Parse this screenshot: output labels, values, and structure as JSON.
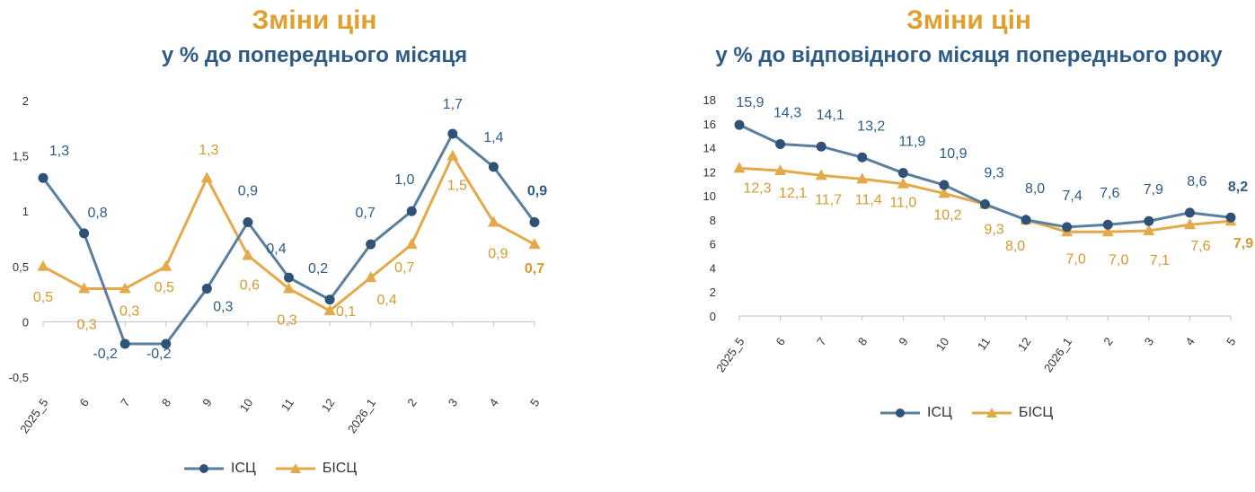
{
  "colors": {
    "title": "#E0A030",
    "subtitle": "#2E5B86",
    "isc": "#5A7E9E",
    "isc_marker": "#2F5276",
    "bisc": "#E3A94A",
    "isc_label": "#2E5B86",
    "bisc_label": "#D49A2E"
  },
  "chart_data": [
    {
      "type": "line",
      "title": "Зміни цін",
      "subtitle": "у % до попереднього місяця",
      "categories": [
        "2025_5",
        "6",
        "7",
        "8",
        "9",
        "10",
        "11",
        "12",
        "2026_1",
        "2",
        "3",
        "4",
        "5"
      ],
      "ylim": [
        -0.5,
        2
      ],
      "yticks": [
        "-0,5",
        "0",
        "0,5",
        "1",
        "1,5",
        "2"
      ],
      "ytick_values": [
        -0.5,
        0,
        0.5,
        1,
        1.5,
        2
      ],
      "grid": false,
      "legend_position": "bottom",
      "series": [
        {
          "name": "ІСЦ",
          "marker": "circle",
          "values": [
            1.3,
            0.8,
            -0.2,
            -0.2,
            0.3,
            0.9,
            0.4,
            0.2,
            0.7,
            1.0,
            1.7,
            1.4,
            0.9
          ],
          "labels": [
            "1,3",
            "0,8",
            "-0,2",
            "-0,2",
            "0,3",
            "0,9",
            "0,4",
            "0,2",
            "0,7",
            "1,0",
            "1,7",
            "1,4",
            "0,9"
          ]
        },
        {
          "name": "БІСЦ",
          "marker": "triangle",
          "values": [
            0.5,
            0.3,
            0.3,
            0.5,
            1.3,
            0.6,
            0.3,
            0.1,
            0.4,
            0.7,
            1.5,
            0.9,
            0.7
          ],
          "labels": [
            "0,5",
            "0,3",
            "0,3",
            "0,5",
            "1,3",
            "0,6",
            "0,3",
            "0,1",
            "0,4",
            "0,7",
            "1,5",
            "0,9",
            "0,7"
          ]
        }
      ]
    },
    {
      "type": "line",
      "title": "Зміни цін",
      "subtitle": "у % до відповідного місяця попереднього року",
      "categories": [
        "2025_5",
        "6",
        "7",
        "8",
        "9",
        "10",
        "11",
        "12",
        "2026_1",
        "2",
        "3",
        "4",
        "5"
      ],
      "ylim": [
        0,
        18
      ],
      "yticks": [
        "0",
        "2",
        "4",
        "6",
        "8",
        "10",
        "12",
        "14",
        "16",
        "18"
      ],
      "ytick_values": [
        0,
        2,
        4,
        6,
        8,
        10,
        12,
        14,
        16,
        18
      ],
      "grid": false,
      "legend_position": "bottom",
      "series": [
        {
          "name": "ІСЦ",
          "marker": "circle",
          "values": [
            15.9,
            14.3,
            14.1,
            13.2,
            11.9,
            10.9,
            9.3,
            8.0,
            7.4,
            7.6,
            7.9,
            8.6,
            8.2
          ],
          "labels": [
            "15,9",
            "14,3",
            "14,1",
            "13,2",
            "11,9",
            "10,9",
            "9,3",
            "8,0",
            "7,4",
            "7,6",
            "7,9",
            "8,6",
            "8,2"
          ]
        },
        {
          "name": "БІСЦ",
          "marker": "triangle",
          "values": [
            12.3,
            12.1,
            11.7,
            11.4,
            11.0,
            10.2,
            9.3,
            8.0,
            7.0,
            7.0,
            7.1,
            7.6,
            7.9
          ],
          "labels": [
            "12,3",
            "12,1",
            "11,7",
            "11,4",
            "11,0",
            "10,2",
            "9,3",
            "8,0",
            "7,0",
            "7,0",
            "7,1",
            "7,6",
            "7,9"
          ]
        }
      ]
    }
  ]
}
